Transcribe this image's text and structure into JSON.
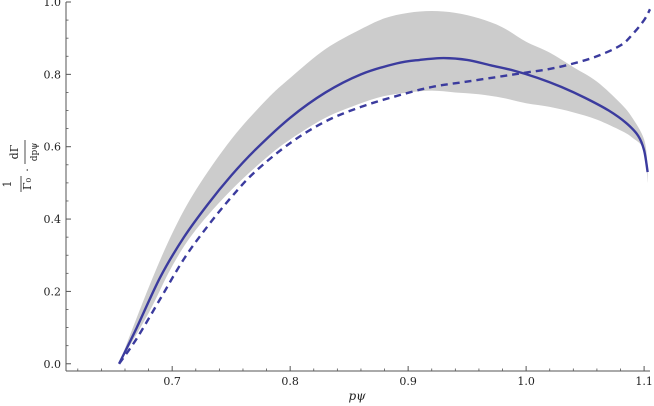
{
  "chart_data": {
    "type": "line",
    "title": "",
    "xlabel": "pψ",
    "ylabel": {
      "numerator": "1",
      "denominator": "Γ₀",
      "operator": "·",
      "deriv_numerator": "dΓ",
      "deriv_denominator": "dpψ"
    },
    "xlim": [
      0.61,
      1.105
    ],
    "ylim": [
      -0.02,
      1.0
    ],
    "xticks": [
      0.7,
      0.8,
      0.9,
      1.0,
      1.1
    ],
    "xtick_labels": [
      "0.7",
      "0.8",
      "0.9",
      "1.0",
      "1.1"
    ],
    "yticks": [
      0.0,
      0.2,
      0.4,
      0.6,
      0.8,
      1.0
    ],
    "ytick_labels": [
      "0.0",
      "0.2",
      "0.4",
      "0.6",
      "0.8",
      "1.0"
    ],
    "grid": false,
    "colors": {
      "line": "#3b3b9e",
      "band": "#cccccc",
      "axis": "#555555"
    },
    "band": {
      "x": [
        0.655,
        0.68,
        0.7,
        0.72,
        0.75,
        0.78,
        0.8,
        0.83,
        0.86,
        0.88,
        0.9,
        0.92,
        0.94,
        0.96,
        0.98,
        1.0,
        1.02,
        1.04,
        1.06,
        1.08,
        1.09,
        1.1,
        1.103
      ],
      "upper": [
        0.0,
        0.21,
        0.36,
        0.48,
        0.62,
        0.73,
        0.79,
        0.87,
        0.925,
        0.955,
        0.97,
        0.975,
        0.97,
        0.955,
        0.93,
        0.89,
        0.86,
        0.82,
        0.78,
        0.72,
        0.68,
        0.62,
        0.55
      ],
      "lower": [
        0.0,
        0.14,
        0.27,
        0.37,
        0.48,
        0.57,
        0.62,
        0.68,
        0.72,
        0.74,
        0.75,
        0.755,
        0.75,
        0.745,
        0.735,
        0.72,
        0.71,
        0.695,
        0.675,
        0.645,
        0.625,
        0.59,
        0.5
      ]
    },
    "series": [
      {
        "style": "solid",
        "x": [
          0.655,
          0.67,
          0.69,
          0.71,
          0.73,
          0.75,
          0.77,
          0.8,
          0.83,
          0.86,
          0.89,
          0.91,
          0.93,
          0.95,
          0.97,
          0.99,
          1.01,
          1.03,
          1.05,
          1.07,
          1.085,
          1.095,
          1.1,
          1.103
        ],
        "y": [
          0.0,
          0.1,
          0.24,
          0.35,
          0.44,
          0.52,
          0.59,
          0.68,
          0.75,
          0.8,
          0.83,
          0.84,
          0.845,
          0.84,
          0.825,
          0.81,
          0.79,
          0.765,
          0.735,
          0.7,
          0.665,
          0.63,
          0.59,
          0.53
        ]
      },
      {
        "style": "dashed",
        "x": [
          0.655,
          0.67,
          0.69,
          0.71,
          0.73,
          0.75,
          0.77,
          0.8,
          0.83,
          0.86,
          0.89,
          0.92,
          0.95,
          0.98,
          1.0,
          1.02,
          1.04,
          1.06,
          1.08,
          1.09,
          1.1,
          1.105
        ],
        "y": [
          0.0,
          0.07,
          0.18,
          0.29,
          0.38,
          0.46,
          0.53,
          0.61,
          0.67,
          0.71,
          0.74,
          0.765,
          0.78,
          0.795,
          0.805,
          0.815,
          0.83,
          0.85,
          0.88,
          0.91,
          0.95,
          0.98
        ]
      }
    ]
  }
}
